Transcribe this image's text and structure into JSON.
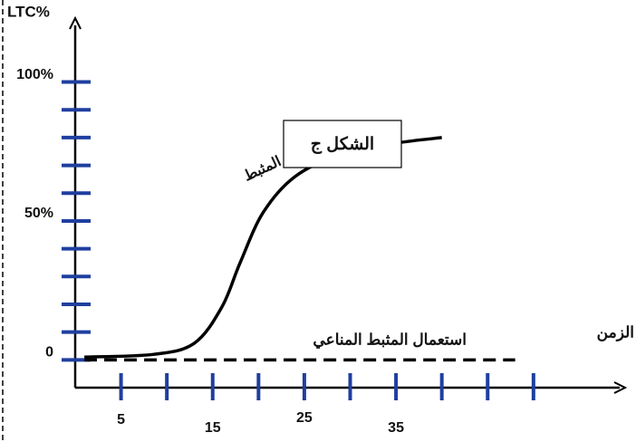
{
  "chart_data": {
    "type": "line",
    "ylabel": "LTC%",
    "xlabel": "الزمن",
    "xlim": [
      0,
      60
    ],
    "ylim": [
      -10,
      123
    ],
    "xticks": [
      5,
      15,
      25,
      35
    ],
    "xminor": [
      10,
      20,
      30,
      40,
      45,
      50
    ],
    "yticks": [
      0,
      {
        "value": 50,
        "label": "50%"
      },
      {
        "value": 100,
        "label": "100%"
      }
    ],
    "yminor": [
      10,
      20,
      30,
      40,
      60,
      70,
      80,
      90
    ],
    "tick_color": "#1f3f9f",
    "series": [
      {
        "color": "#000000",
        "dashed": false,
        "x": [
          1,
          8.6,
          13,
          16,
          18,
          20.5,
          24,
          29,
          35,
          40
        ],
        "values": [
          1,
          2,
          6,
          19,
          35,
          53,
          66,
          74,
          78,
          80
        ]
      },
      {
        "color": "#000000",
        "dashed": true,
        "x": [
          1,
          48
        ],
        "values": [
          0,
          0
        ]
      }
    ],
    "annotations": {
      "figure": "الشكل ج",
      "curve_label": "المثبط",
      "dashed_label": "استعمال المثبط المناعي"
    }
  }
}
